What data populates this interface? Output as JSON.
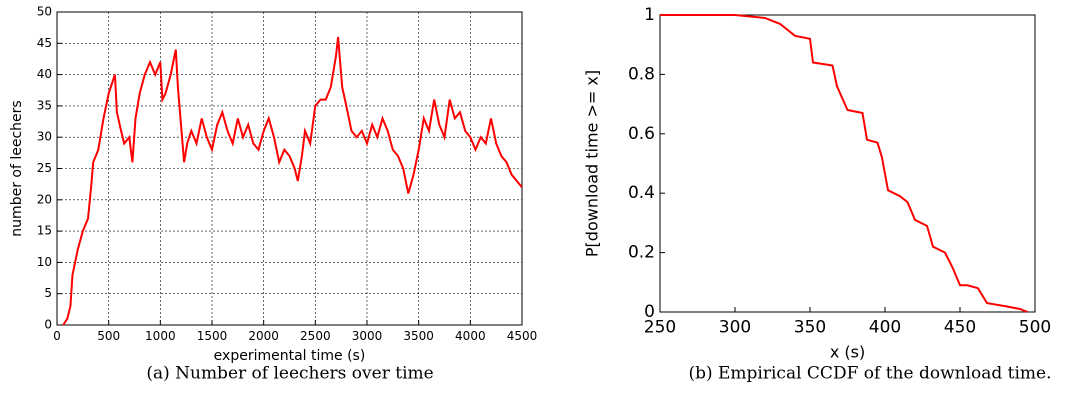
{
  "chart_data": [
    {
      "type": "line",
      "caption": "(a) Number of leechers over time",
      "x_label": "experimental time (s)",
      "y_label": "number of leechers",
      "grid": true,
      "xlim": [
        0,
        4500
      ],
      "xticks": [
        0,
        500,
        1000,
        1500,
        2000,
        2500,
        3000,
        3500,
        4000,
        4500
      ],
      "ylim": [
        0,
        50
      ],
      "yticks": [
        0,
        5,
        10,
        15,
        20,
        25,
        30,
        35,
        40,
        45,
        50
      ],
      "series": [
        {
          "color": "#ff0000",
          "x": [
            60,
            100,
            130,
            150,
            200,
            250,
            300,
            330,
            350,
            400,
            450,
            500,
            560,
            580,
            620,
            650,
            700,
            730,
            760,
            800,
            850,
            900,
            950,
            1000,
            1020,
            1050,
            1100,
            1150,
            1170,
            1200,
            1230,
            1260,
            1300,
            1350,
            1400,
            1450,
            1500,
            1550,
            1600,
            1650,
            1700,
            1750,
            1800,
            1850,
            1900,
            1950,
            2000,
            2050,
            2100,
            2150,
            2200,
            2250,
            2300,
            2330,
            2370,
            2400,
            2450,
            2500,
            2550,
            2600,
            2650,
            2700,
            2720,
            2760,
            2800,
            2850,
            2900,
            2950,
            3000,
            3050,
            3100,
            3150,
            3200,
            3250,
            3300,
            3350,
            3400,
            3450,
            3500,
            3550,
            3600,
            3650,
            3700,
            3750,
            3800,
            3850,
            3900,
            3950,
            4000,
            4050,
            4100,
            4150,
            4200,
            4250,
            4300,
            4350,
            4400,
            4450,
            4500
          ],
          "values": [
            0,
            1,
            3,
            8,
            12,
            15,
            17,
            22,
            26,
            28,
            33,
            37,
            40,
            34,
            31,
            29,
            30,
            26,
            33,
            37,
            40,
            42,
            40,
            42,
            36,
            37,
            40,
            44,
            38,
            32,
            26,
            29,
            31,
            29,
            33,
            30,
            28,
            32,
            34,
            31,
            29,
            33,
            30,
            32,
            29,
            28,
            31,
            33,
            30,
            26,
            28,
            27,
            25,
            23,
            27,
            31,
            29,
            35,
            36,
            36,
            38,
            43,
            46,
            38,
            35,
            31,
            30,
            31,
            29,
            32,
            30,
            33,
            31,
            28,
            27,
            25,
            21,
            24,
            28,
            33,
            31,
            36,
            32,
            30,
            36,
            33,
            34,
            31,
            30,
            28,
            30,
            29,
            33,
            29,
            27,
            26,
            24,
            23,
            22
          ]
        }
      ]
    },
    {
      "type": "line",
      "caption": "(b) Empirical CCDF of the download time.",
      "x_label": "x (s)",
      "y_label": "P[download time >= x]",
      "grid": false,
      "xlim": [
        250,
        500
      ],
      "xticks": [
        250,
        300,
        350,
        400,
        450,
        500
      ],
      "ylim": [
        0,
        1
      ],
      "yticks": [
        0,
        0.2,
        0.4,
        0.6,
        0.8,
        1
      ],
      "series": [
        {
          "color": "#ff0000",
          "x": [
            250,
            300,
            320,
            330,
            340,
            350,
            352,
            365,
            368,
            375,
            385,
            388,
            395,
            398,
            402,
            410,
            415,
            420,
            428,
            432,
            440,
            445,
            450,
            455,
            462,
            468,
            480,
            490,
            495
          ],
          "values": [
            1,
            1,
            0.99,
            0.97,
            0.93,
            0.92,
            0.84,
            0.83,
            0.76,
            0.68,
            0.67,
            0.58,
            0.57,
            0.52,
            0.41,
            0.39,
            0.37,
            0.31,
            0.29,
            0.22,
            0.2,
            0.15,
            0.09,
            0.09,
            0.08,
            0.03,
            0.02,
            0.01,
            0
          ]
        }
      ]
    }
  ]
}
